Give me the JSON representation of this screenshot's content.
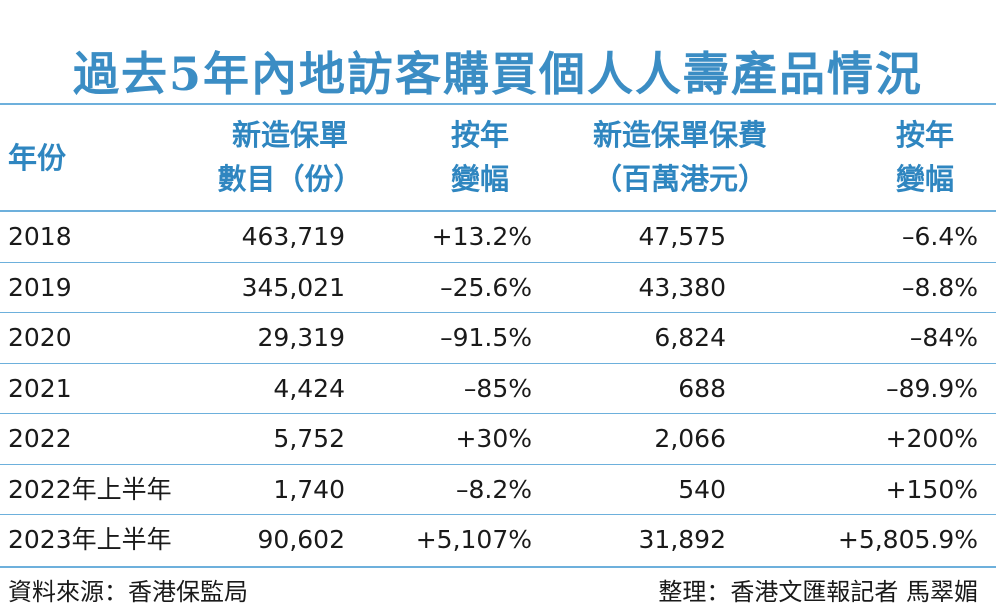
{
  "title": "過去5年內地訪客購買個人人壽產品情況",
  "table": {
    "header": [
      [
        "年份"
      ],
      [
        "新造保單",
        "數目（份）"
      ],
      [
        "按年",
        "變幅"
      ],
      [
        "新造保單保費",
        "（百萬港元）"
      ],
      [
        "按年",
        "變幅"
      ]
    ],
    "rows": [
      [
        "2018",
        "463,719",
        "+13.2%",
        "47,575",
        "–6.4%"
      ],
      [
        "2019",
        "345,021",
        "–25.6%",
        "43,380",
        "–8.8%"
      ],
      [
        "2020",
        "29,319",
        "–91.5%",
        "6,824",
        "–84%"
      ],
      [
        "2021",
        "4,424",
        "–85%",
        "688",
        "–89.9%"
      ],
      [
        "2022",
        "5,752",
        "+30%",
        "2,066",
        "+200%"
      ],
      [
        "2022年上半年",
        "1,740",
        "–8.2%",
        "540",
        "+150%"
      ],
      [
        "2023年上半年",
        "90,602",
        "+5,107%",
        "31,892",
        "+5,805.9%"
      ]
    ]
  },
  "footer": {
    "source": "資料來源：香港保監局",
    "credit": "整理：香港文匯報記者 馬翠媚"
  }
}
